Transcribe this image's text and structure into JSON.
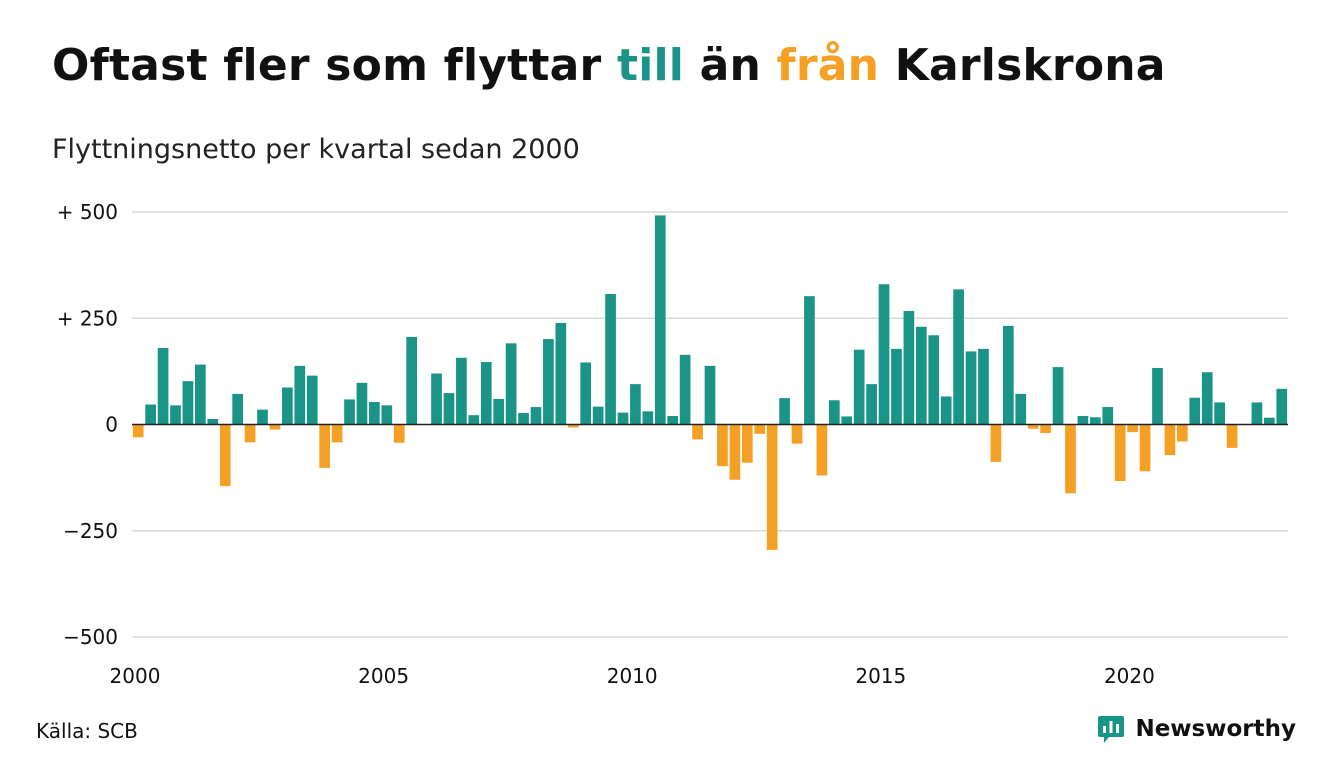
{
  "title": {
    "part1": "Oftast fler som flyttar ",
    "part2": "till",
    "part3": " än ",
    "part4": "från",
    "part5": " Karlskrona"
  },
  "subtitle": "Flyttningsnetto per kvartal sedan 2000",
  "source": "Källa: SCB",
  "brand": {
    "name": "Newsworthy",
    "icon": "newsworthy-logo-icon"
  },
  "colors": {
    "positive": "#1a9486",
    "negative": "#f4a025",
    "grid": "#d9d9d9",
    "text": "#111111"
  },
  "chart_data": {
    "type": "bar",
    "title": "Oftast fler som flyttar till än från Karlskrona",
    "subtitle": "Flyttningsnetto per kvartal sedan 2000",
    "xlabel": "",
    "ylabel": "",
    "ylim": [
      -500,
      500
    ],
    "y_ticks": [
      500,
      250,
      0,
      -250,
      -500
    ],
    "y_tick_labels": [
      "+ 500",
      "+ 250",
      "0",
      "−250",
      "−500"
    ],
    "x_ticks": [
      2000,
      2005,
      2010,
      2015,
      2020
    ],
    "x_tick_labels": [
      "2000",
      "2005",
      "2010",
      "2015",
      "2020"
    ],
    "grid": true,
    "start": "2000 Q1",
    "frequency": "quarter",
    "values": [
      -30,
      47,
      180,
      45,
      102,
      141,
      13,
      -145,
      72,
      -42,
      35,
      -12,
      87,
      138,
      115,
      -102,
      -42,
      59,
      98,
      53,
      45,
      -43,
      206,
      0,
      120,
      74,
      157,
      22,
      147,
      60,
      191,
      27,
      41,
      201,
      239,
      -7,
      146,
      42,
      307,
      28,
      95,
      31,
      492,
      20,
      164,
      -35,
      138,
      -98,
      -130,
      -90,
      -22,
      -295,
      62,
      -45,
      302,
      -120,
      57,
      19,
      176,
      95,
      330,
      178,
      267,
      230,
      210,
      66,
      318,
      172,
      178,
      -88,
      232,
      72,
      -10,
      -20,
      135,
      -162,
      20,
      17,
      41,
      -133,
      -18,
      -110,
      133,
      -72,
      -40,
      63,
      123,
      52,
      -55,
      0,
      52,
      16,
      84
    ]
  }
}
